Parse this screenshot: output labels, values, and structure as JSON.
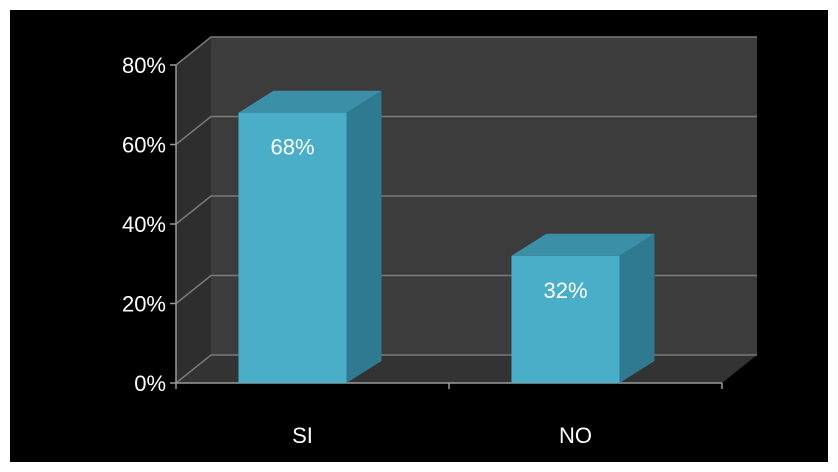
{
  "chart_data": {
    "type": "bar",
    "categories": [
      "SI",
      "NO"
    ],
    "values": [
      68,
      32
    ],
    "data_labels": [
      "68%",
      "32%"
    ],
    "ylim": [
      0,
      80
    ],
    "yticks": [
      0,
      20,
      40,
      60,
      80
    ],
    "ytick_labels": [
      "0%",
      "20%",
      "40%",
      "60%",
      "80%"
    ],
    "grid": true,
    "style": "3d-column",
    "colors": {
      "background": "#000000",
      "wall": "#3c3c3c",
      "side_wall": "#2e2e2e",
      "floor": "#333333",
      "gridline": "#7a7a7a",
      "axis": "#9a9a9a",
      "bar_front": "#4aaec8",
      "bar_top": "#3b90a8",
      "bar_side": "#2f7a90",
      "text": "#ffffff"
    }
  }
}
